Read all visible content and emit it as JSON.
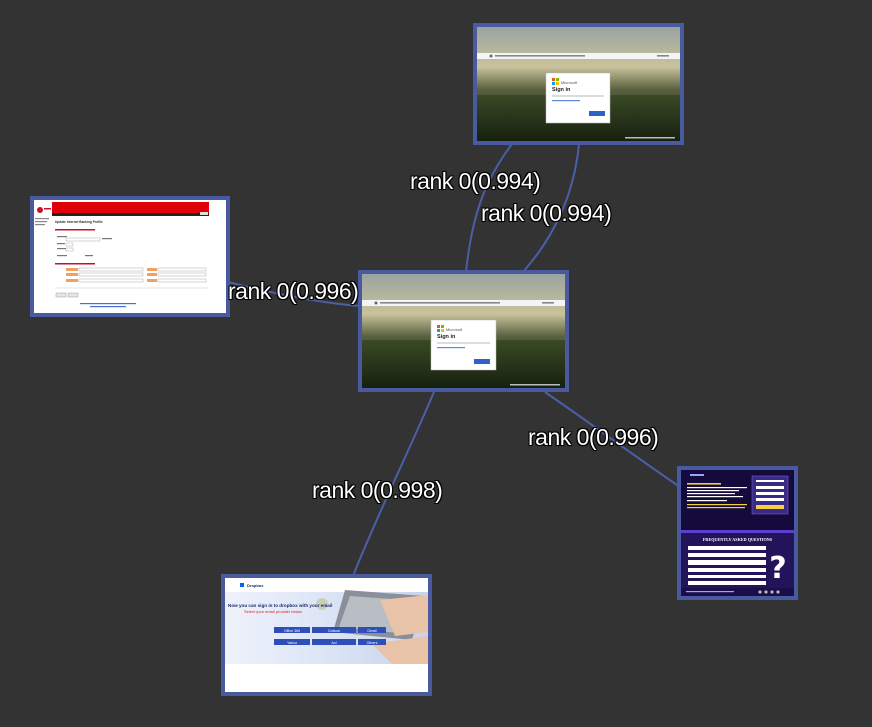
{
  "colors": {
    "background": "#333333",
    "edge": "#4a5fa6",
    "node_border": "#4a5aa0",
    "label_text": "#ffffff"
  },
  "edges": [
    {
      "id": "top-a",
      "from": "center",
      "to": "top",
      "label": "rank 0(0.994)"
    },
    {
      "id": "top-b",
      "from": "center",
      "to": "top",
      "label": "rank 0(0.994)"
    },
    {
      "id": "left",
      "from": "center",
      "to": "left",
      "label": "rank 0(0.996)"
    },
    {
      "id": "right",
      "from": "center",
      "to": "right",
      "label": "rank 0(0.996)"
    },
    {
      "id": "bottom",
      "from": "center",
      "to": "bottom",
      "label": "rank 0(0.998)"
    }
  ],
  "thumbnails": {
    "signin_title": "Sign in",
    "signin_brand": "Microsoft",
    "bank_title": "Update Internet Banking Profile",
    "dropbox_brand": "Dropbox",
    "dropbox_heading": "Now you can sign in to dropbox with your email",
    "dropbox_sub": "Select your email provider below",
    "provider_buttons": [
      "Office 365",
      "Outlook",
      "Gmail",
      "Yahoo",
      "Aol",
      "Others"
    ],
    "faq_heading": "FREQUENTLY ASKED QUESTIONS"
  }
}
